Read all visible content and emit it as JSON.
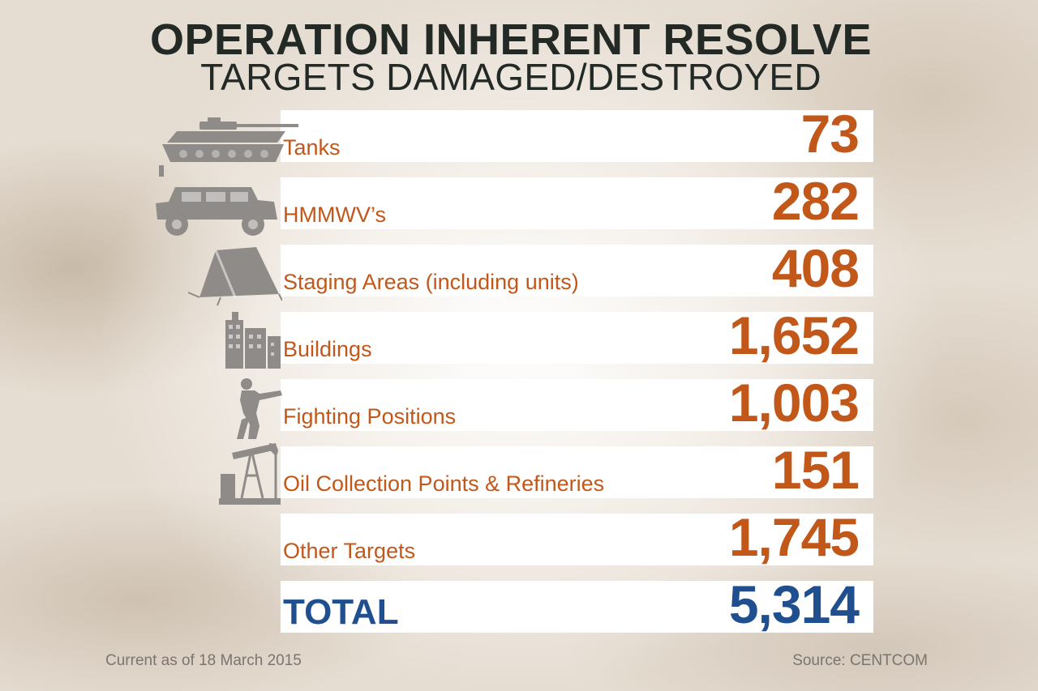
{
  "chart_data": {
    "type": "table",
    "title": "OPERATION INHERENT RESOLVE",
    "subtitle": "TARGETS DAMAGED/DESTROYED",
    "rows": [
      {
        "label": "Tanks",
        "display": "73",
        "value": 73,
        "icon": "tank-icon"
      },
      {
        "label": "HMMWV’s",
        "display": "282",
        "value": 282,
        "icon": "humvee-icon"
      },
      {
        "label": "Staging Areas (including units)",
        "display": "408",
        "value": 408,
        "icon": "tent-icon"
      },
      {
        "label": "Buildings",
        "display": "1,652",
        "value": 1652,
        "icon": "buildings-icon"
      },
      {
        "label": "Fighting Positions",
        "display": "1,003",
        "value": 1003,
        "icon": "soldier-icon"
      },
      {
        "label": "Oil Collection Points & Refineries",
        "display": "151",
        "value": 151,
        "icon": "oil-pump-icon"
      },
      {
        "label": "Other Targets",
        "display": "1,745",
        "value": 1745,
        "icon": null
      }
    ],
    "total": {
      "label": "TOTAL",
      "display": "5,314",
      "value": 5314
    },
    "footer_left": "Current as of 18 March 2015",
    "footer_right": "Source: CENTCOM"
  },
  "colors": {
    "title": "#232a26",
    "value_orange": "#c2571a",
    "total_blue": "#1f4f8f",
    "icon_gray": "#8e8b88",
    "footer_gray": "#7a7570"
  }
}
